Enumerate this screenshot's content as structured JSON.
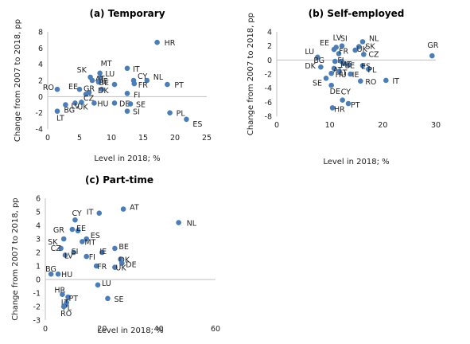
{
  "chart_data": [
    {
      "id": "a",
      "type": "scatter",
      "title": "(a) Temporary",
      "xlabel": "Level in 2018; %",
      "ylabel": "Change from 2007 to 2018, pp",
      "xlim": [
        0,
        25
      ],
      "ylim": [
        -4,
        8
      ],
      "xticks": [
        0,
        5,
        10,
        15,
        20,
        25
      ],
      "yticks": [
        -4,
        -2,
        0,
        2,
        4,
        6,
        8
      ],
      "grid": false,
      "points": [
        {
          "label": "HR",
          "x": 17.2,
          "y": 6.7
        },
        {
          "label": "IT",
          "x": 12.5,
          "y": 3.5
        },
        {
          "label": "MT",
          "x": 8.2,
          "y": 2.9
        },
        {
          "label": "SK",
          "x": 6.7,
          "y": 2.4
        },
        {
          "label": "LU",
          "x": 8.3,
          "y": 2.3
        },
        {
          "label": "AT",
          "x": 7.0,
          "y": 2.0
        },
        {
          "label": "IE",
          "x": 8.0,
          "y": 1.8
        },
        {
          "label": "CY",
          "x": 13.5,
          "y": 2.0
        },
        {
          "label": "NL",
          "x": 15.6,
          "y": 2.0
        },
        {
          "label": "BE",
          "x": 10.5,
          "y": 1.5
        },
        {
          "label": "FR",
          "x": 13.6,
          "y": 1.6
        },
        {
          "label": "PT",
          "x": 18.8,
          "y": 1.5
        },
        {
          "label": "RO",
          "x": 1.5,
          "y": 0.9
        },
        {
          "label": "EE",
          "x": 5.0,
          "y": 0.9
        },
        {
          "label": "DK",
          "x": 8.5,
          "y": 0.9
        },
        {
          "label": "GR",
          "x": 6.5,
          "y": 0.5
        },
        {
          "label": "CZ",
          "x": 6.0,
          "y": 0.3
        },
        {
          "label": "FI",
          "x": 12.5,
          "y": 0.4
        },
        {
          "label": "HU",
          "x": 7.3,
          "y": -0.8
        },
        {
          "label": "UK",
          "x": 5.3,
          "y": -0.7
        },
        {
          "label": "BG",
          "x": 4.3,
          "y": -0.8
        },
        {
          "label": "DE",
          "x": 10.5,
          "y": -0.8
        },
        {
          "label": "SE",
          "x": 13.0,
          "y": -0.9
        },
        {
          "label": "LV",
          "x": 2.8,
          "y": -1.0
        },
        {
          "label": "LT",
          "x": 1.5,
          "y": -1.8
        },
        {
          "label": "SI",
          "x": 12.5,
          "y": -1.8
        },
        {
          "label": "PL",
          "x": 19.2,
          "y": -2.0
        },
        {
          "label": "ES",
          "x": 21.8,
          "y": -2.8
        }
      ]
    },
    {
      "id": "b",
      "type": "scatter",
      "title": "(b) Self-employed",
      "xlabel": "Level in 2018; %",
      "ylabel": "Change from 2007 to 2018, pp",
      "xlim": [
        0,
        30
      ],
      "ylim": [
        -8,
        4
      ],
      "xticks": [
        0,
        10,
        20,
        30
      ],
      "yticks": [
        -8,
        -6,
        -4,
        -2,
        0,
        2,
        4
      ],
      "grid": false,
      "points": [
        {
          "label": "GR",
          "x": 29.3,
          "y": 0.6
        },
        {
          "label": "SI",
          "x": 12.3,
          "y": 2.0
        },
        {
          "label": "EE",
          "x": 10.8,
          "y": 1.5
        },
        {
          "label": "LV",
          "x": 11.2,
          "y": 1.8
        },
        {
          "label": "NL",
          "x": 16.2,
          "y": 2.6
        },
        {
          "label": "SK",
          "x": 15.5,
          "y": 1.9
        },
        {
          "label": "UK",
          "x": 14.8,
          "y": 1.4
        },
        {
          "label": "CZ",
          "x": 16.4,
          "y": 0.8
        },
        {
          "label": "FR",
          "x": 11.7,
          "y": 0.9
        },
        {
          "label": "LU",
          "x": 7.7,
          "y": 0.4
        },
        {
          "label": "BG",
          "x": 11.0,
          "y": -0.2
        },
        {
          "label": "FI",
          "x": 12.2,
          "y": -0.2
        },
        {
          "label": "MT",
          "x": 12.6,
          "y": -0.5
        },
        {
          "label": "BE",
          "x": 13.6,
          "y": -0.7
        },
        {
          "label": "ES",
          "x": 16.2,
          "y": -0.8
        },
        {
          "label": "PL",
          "x": 17.3,
          "y": -1.3
        },
        {
          "label": "DK",
          "x": 8.3,
          "y": -1.0
        },
        {
          "label": "AT",
          "x": 10.8,
          "y": -1.2
        },
        {
          "label": "LT",
          "x": 11.8,
          "y": -1.6
        },
        {
          "label": "HU",
          "x": 10.3,
          "y": -1.9
        },
        {
          "label": "IE",
          "x": 13.9,
          "y": -2.0
        },
        {
          "label": "SE",
          "x": 9.3,
          "y": -2.6
        },
        {
          "label": "RO",
          "x": 15.8,
          "y": -3.0
        },
        {
          "label": "IT",
          "x": 20.6,
          "y": -2.9
        },
        {
          "label": "DE",
          "x": 10.3,
          "y": -3.6
        },
        {
          "label": "CY",
          "x": 12.4,
          "y": -5.7
        },
        {
          "label": "PT",
          "x": 13.5,
          "y": -6.2
        },
        {
          "label": "HR",
          "x": 10.5,
          "y": -6.8
        }
      ]
    },
    {
      "id": "c",
      "type": "scatter",
      "title": "(c) Part-time",
      "xlabel": "Level in 2018; %",
      "ylabel": "Change from 2007 to 2018, pp",
      "xlim": [
        0,
        60
      ],
      "ylim": [
        -3,
        6
      ],
      "xticks": [
        0,
        20,
        40,
        60
      ],
      "yticks": [
        -3,
        -2,
        -1,
        0,
        1,
        2,
        3,
        4,
        5,
        6
      ],
      "grid": false,
      "points": [
        {
          "label": "AT",
          "x": 27.5,
          "y": 5.2
        },
        {
          "label": "NL",
          "x": 47.0,
          "y": 4.2
        },
        {
          "label": "IT",
          "x": 19.0,
          "y": 4.9
        },
        {
          "label": "CY",
          "x": 10.5,
          "y": 4.4
        },
        {
          "label": "GR",
          "x": 9.5,
          "y": 3.7
        },
        {
          "label": "EE",
          "x": 11.5,
          "y": 3.6
        },
        {
          "label": "ES",
          "x": 14.5,
          "y": 3.0
        },
        {
          "label": "SK",
          "x": 6.5,
          "y": 3.0
        },
        {
          "label": "MT",
          "x": 13.0,
          "y": 2.8
        },
        {
          "label": "BE",
          "x": 24.5,
          "y": 2.3
        },
        {
          "label": "CZ",
          "x": 5.5,
          "y": 2.3
        },
        {
          "label": "SI",
          "x": 10.0,
          "y": 2.0
        },
        {
          "label": "IE",
          "x": 20.0,
          "y": 2.0
        },
        {
          "label": "LV",
          "x": 7.0,
          "y": 1.8
        },
        {
          "label": "FI",
          "x": 14.5,
          "y": 1.7
        },
        {
          "label": "DK",
          "x": 26.5,
          "y": 1.5
        },
        {
          "label": "DE",
          "x": 27.0,
          "y": 1.2
        },
        {
          "label": "FR",
          "x": 18.0,
          "y": 1.0
        },
        {
          "label": "UK",
          "x": 24.5,
          "y": 0.9
        },
        {
          "label": "BG",
          "x": 2.0,
          "y": 0.4
        },
        {
          "label": "HU",
          "x": 4.5,
          "y": 0.4
        },
        {
          "label": "LU",
          "x": 18.5,
          "y": -0.4
        },
        {
          "label": "HR",
          "x": 6.0,
          "y": -1.1
        },
        {
          "label": "PT",
          "x": 8.0,
          "y": -1.3
        },
        {
          "label": "SE",
          "x": 22.0,
          "y": -1.4
        },
        {
          "label": "LT",
          "x": 7.5,
          "y": -1.7
        },
        {
          "label": "PL",
          "x": 7.0,
          "y": -1.9
        },
        {
          "label": "RO",
          "x": 6.5,
          "y": -2.0
        }
      ]
    }
  ]
}
